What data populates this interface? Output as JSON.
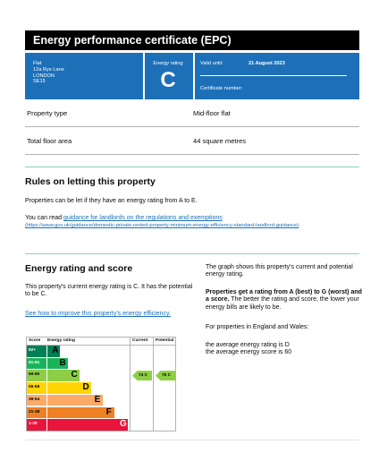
{
  "header": {
    "title": "Energy performance certificate (EPC)"
  },
  "property": {
    "address_lines": [
      "Flat",
      "12a Rye Lane",
      "LONDON",
      "SE15"
    ],
    "rating_label": "Energy rating",
    "rating_letter": "C",
    "valid_until_label": "Valid until:",
    "valid_until_value": "21 August 2023",
    "certificate_number_label": "Certificate number:"
  },
  "details": [
    {
      "label": "Property type",
      "value": "Mid-floor flat"
    },
    {
      "label": "Total floor area",
      "value": "44 square metres"
    }
  ],
  "letting": {
    "heading": "Rules on letting this property",
    "para1": "Properties can be let if they have an energy rating from A to E.",
    "para2_prefix": "You can read ",
    "link_text": "guidance for landlords on the regulations and exemptions",
    "link_url": "(https://www.gov.uk/guidance/domestic-private-rented-property-minimum-energy-efficiency-standard-landlord-guidance)",
    "link_suffix": "."
  },
  "energy": {
    "heading": "Energy rating and score",
    "current_text": "This property's current energy rating is C. It has the potential to be C.",
    "improve_link": "See how to improve this property's energy efficiency.",
    "right_p1": "The graph shows this property's current and potential energy rating.",
    "right_p2_bold": "Properties get a rating from A (best) to G (worst) and a score.",
    "right_p2_rest": " The better the rating and score, the lower your energy bills are likely to be.",
    "right_p3": "For properties in England and Wales:",
    "right_p4": "the average energy rating is D",
    "right_p5": "the average energy score is 60"
  },
  "chart_data": {
    "type": "bar",
    "headers": {
      "score": "Score",
      "rating": "Energy rating",
      "current": "Current",
      "potential": "Potential"
    },
    "bands": [
      {
        "range": "92+",
        "letter": "A",
        "color": "#008054",
        "fill": 0.12
      },
      {
        "range": "81-91",
        "letter": "B",
        "color": "#19b459",
        "fill": 0.19
      },
      {
        "range": "69-80",
        "letter": "C",
        "color": "#8dce46",
        "fill": 0.3
      },
      {
        "range": "55-68",
        "letter": "D",
        "color": "#ffd500",
        "fill": 0.41
      },
      {
        "range": "39-54",
        "letter": "E",
        "color": "#fcaa65",
        "fill": 0.52
      },
      {
        "range": "21-38",
        "letter": "F",
        "color": "#ef8023",
        "fill": 0.63
      },
      {
        "range": "1-20",
        "letter": "G",
        "color": "#e9153b",
        "fill": 0.76
      }
    ],
    "current": {
      "score": 74,
      "letter": "C",
      "label": "74  C"
    },
    "potential": {
      "score": 75,
      "letter": "C",
      "label": "75  C"
    }
  }
}
